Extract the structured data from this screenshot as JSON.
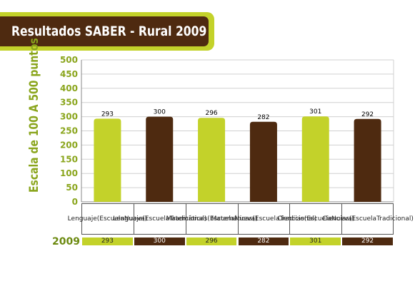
{
  "title": "Resultados SABER - Rural 2009",
  "chart_data": {
    "type": "bar",
    "ylabel": "Escala de 100 A 500 puntos",
    "ylim": [
      0,
      500
    ],
    "yticks": [
      0,
      50,
      100,
      150,
      200,
      250,
      300,
      350,
      400,
      450,
      500
    ],
    "grid": true,
    "categories": [
      "Lenguaje (Escuela Nueva)",
      "Lenguaje (Escuela Tradicional)",
      "Matemáticas (Escuela Nueva)",
      "Matemáticas (Escuela Tradicional)",
      "Ciencias (Escuela Nueva)",
      "Ciencias (Escuela Tradicional)"
    ],
    "category_lines": [
      [
        "Lenguaje",
        "(Escuela",
        "Nueva)"
      ],
      [
        "Lenguaje",
        "(Escuela",
        "Tradicional)"
      ],
      [
        "Matemáticas",
        "(Escuela",
        "Nueva)"
      ],
      [
        "Matemáticas",
        "(Escuela",
        "Tradicional)"
      ],
      [
        "Ciencias",
        "(Escuela",
        "Nueva)"
      ],
      [
        "Ciencias",
        "(Escuela",
        "Tradicional)"
      ]
    ],
    "values": [
      293,
      300,
      296,
      282,
      301,
      292
    ],
    "value_labels": [
      "293",
      "300",
      "296",
      "282",
      "301",
      "292"
    ],
    "table_row_label": "2009"
  },
  "colors": {
    "nueva": "#c3d22a",
    "tradicional": "#4e2a10",
    "axis_text": "#8aa51c",
    "grid": "#d0d0d0",
    "title_bg": "#4e2a10",
    "title_frame": "#c3d22a"
  }
}
